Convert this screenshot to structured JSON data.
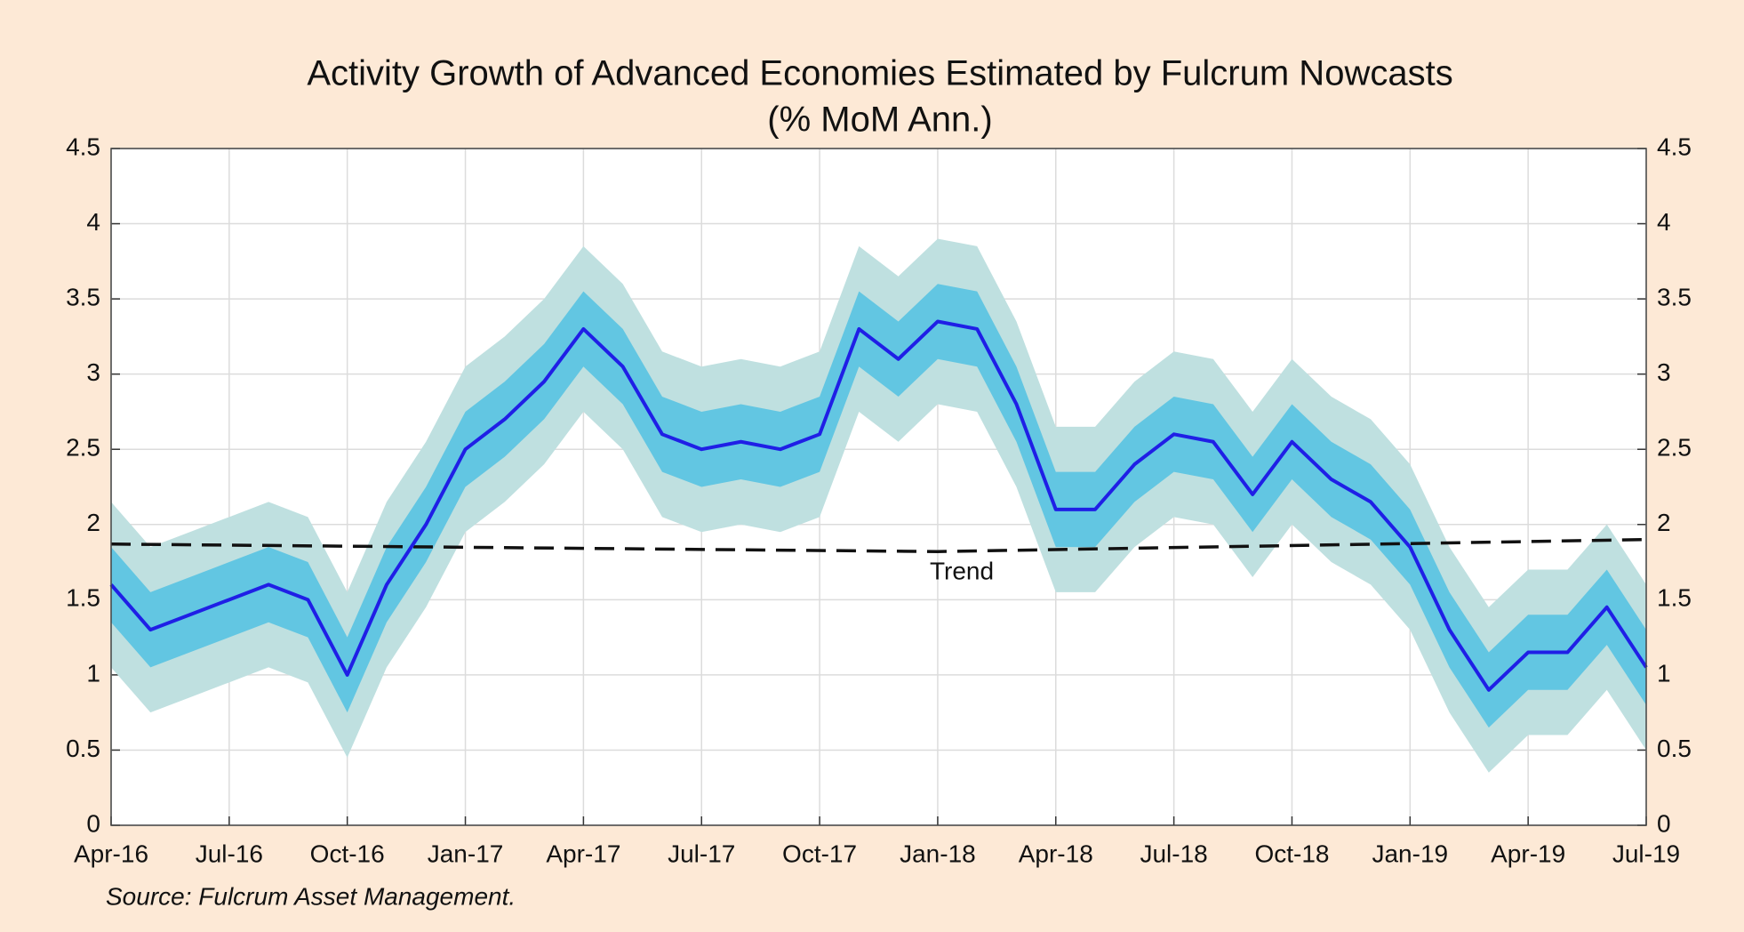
{
  "chart_data": {
    "type": "line",
    "title": "Activity Growth of Advanced Economies Estimated by Fulcrum Nowcasts",
    "subtitle": "(% MoM Ann.)",
    "source": "Source: Fulcrum Asset Management.",
    "x": [
      "2016-04",
      "2016-05",
      "2016-06",
      "2016-07",
      "2016-08",
      "2016-09",
      "2016-10",
      "2016-11",
      "2016-12",
      "2017-01",
      "2017-02",
      "2017-03",
      "2017-04",
      "2017-05",
      "2017-06",
      "2017-07",
      "2017-08",
      "2017-09",
      "2017-10",
      "2017-11",
      "2017-12",
      "2018-01",
      "2018-02",
      "2018-03",
      "2018-04",
      "2018-05",
      "2018-06",
      "2018-07",
      "2018-08",
      "2018-09",
      "2018-10",
      "2018-11",
      "2018-12",
      "2019-01",
      "2019-02",
      "2019-03",
      "2019-04",
      "2019-05",
      "2019-06",
      "2019-07"
    ],
    "series": [
      {
        "color": "#1f1fe6",
        "values": [
          1.6,
          1.3,
          1.4,
          1.5,
          1.6,
          1.5,
          1.0,
          1.6,
          2.0,
          2.5,
          2.7,
          2.95,
          3.3,
          3.05,
          2.6,
          2.5,
          2.55,
          2.5,
          2.6,
          3.3,
          3.1,
          3.35,
          3.3,
          2.8,
          2.1,
          2.1,
          2.4,
          2.6,
          2.55,
          2.2,
          2.55,
          2.3,
          2.15,
          1.85,
          1.3,
          0.9,
          1.15,
          1.15,
          1.45,
          1.05
        ]
      }
    ],
    "bands": [
      {
        "color": "#bfe0e0",
        "lower": [
          1.05,
          0.75,
          0.85,
          0.95,
          1.05,
          0.95,
          0.45,
          1.05,
          1.45,
          1.95,
          2.15,
          2.4,
          2.75,
          2.5,
          2.05,
          1.95,
          2.0,
          1.95,
          2.05,
          2.75,
          2.55,
          2.8,
          2.75,
          2.25,
          1.55,
          1.55,
          1.85,
          2.05,
          2.0,
          1.65,
          2.0,
          1.75,
          1.6,
          1.3,
          0.75,
          0.35,
          0.6,
          0.6,
          0.9,
          0.5
        ],
        "upper": [
          2.15,
          1.85,
          1.95,
          2.05,
          2.15,
          2.05,
          1.55,
          2.15,
          2.55,
          3.05,
          3.25,
          3.5,
          3.85,
          3.6,
          3.15,
          3.05,
          3.1,
          3.05,
          3.15,
          3.85,
          3.65,
          3.9,
          3.85,
          3.35,
          2.65,
          2.65,
          2.95,
          3.15,
          3.1,
          2.75,
          3.1,
          2.85,
          2.7,
          2.4,
          1.85,
          1.45,
          1.7,
          1.7,
          2.0,
          1.6
        ]
      },
      {
        "color": "#62c6e2",
        "lower": [
          1.35,
          1.05,
          1.15,
          1.25,
          1.35,
          1.25,
          0.75,
          1.35,
          1.75,
          2.25,
          2.45,
          2.7,
          3.05,
          2.8,
          2.35,
          2.25,
          2.3,
          2.25,
          2.35,
          3.05,
          2.85,
          3.1,
          3.05,
          2.55,
          1.85,
          1.85,
          2.15,
          2.35,
          2.3,
          1.95,
          2.3,
          2.05,
          1.9,
          1.6,
          1.05,
          0.65,
          0.9,
          0.9,
          1.2,
          0.8
        ],
        "upper": [
          1.85,
          1.55,
          1.65,
          1.75,
          1.85,
          1.75,
          1.25,
          1.85,
          2.25,
          2.75,
          2.95,
          3.2,
          3.55,
          3.3,
          2.85,
          2.75,
          2.8,
          2.75,
          2.85,
          3.55,
          3.35,
          3.6,
          3.55,
          3.05,
          2.35,
          2.35,
          2.65,
          2.85,
          2.8,
          2.45,
          2.8,
          2.55,
          2.4,
          2.1,
          1.55,
          1.15,
          1.4,
          1.4,
          1.7,
          1.3
        ]
      }
    ],
    "trend": {
      "label": "Trend",
      "color": "#111111",
      "x": [
        "2016-04",
        "2018-01",
        "2019-07"
      ],
      "values": [
        1.87,
        1.82,
        1.9
      ]
    },
    "xlim": [
      "2016-04",
      "2019-07"
    ],
    "xticks": [
      {
        "value": "2016-04",
        "label": "Apr-16"
      },
      {
        "value": "2016-07",
        "label": "Jul-16"
      },
      {
        "value": "2016-10",
        "label": "Oct-16"
      },
      {
        "value": "2017-01",
        "label": "Jan-17"
      },
      {
        "value": "2017-04",
        "label": "Apr-17"
      },
      {
        "value": "2017-07",
        "label": "Jul-17"
      },
      {
        "value": "2017-10",
        "label": "Oct-17"
      },
      {
        "value": "2018-01",
        "label": "Jan-18"
      },
      {
        "value": "2018-04",
        "label": "Apr-18"
      },
      {
        "value": "2018-07",
        "label": "Jul-18"
      },
      {
        "value": "2018-10",
        "label": "Oct-18"
      },
      {
        "value": "2019-01",
        "label": "Jan-19"
      },
      {
        "value": "2019-04",
        "label": "Apr-19"
      },
      {
        "value": "2019-07",
        "label": "Jul-19"
      }
    ],
    "ylim": [
      0,
      4.5
    ],
    "yticks": [
      0,
      0.5,
      1,
      1.5,
      2,
      2.5,
      3,
      3.5,
      4,
      4.5
    ],
    "grid": true
  }
}
